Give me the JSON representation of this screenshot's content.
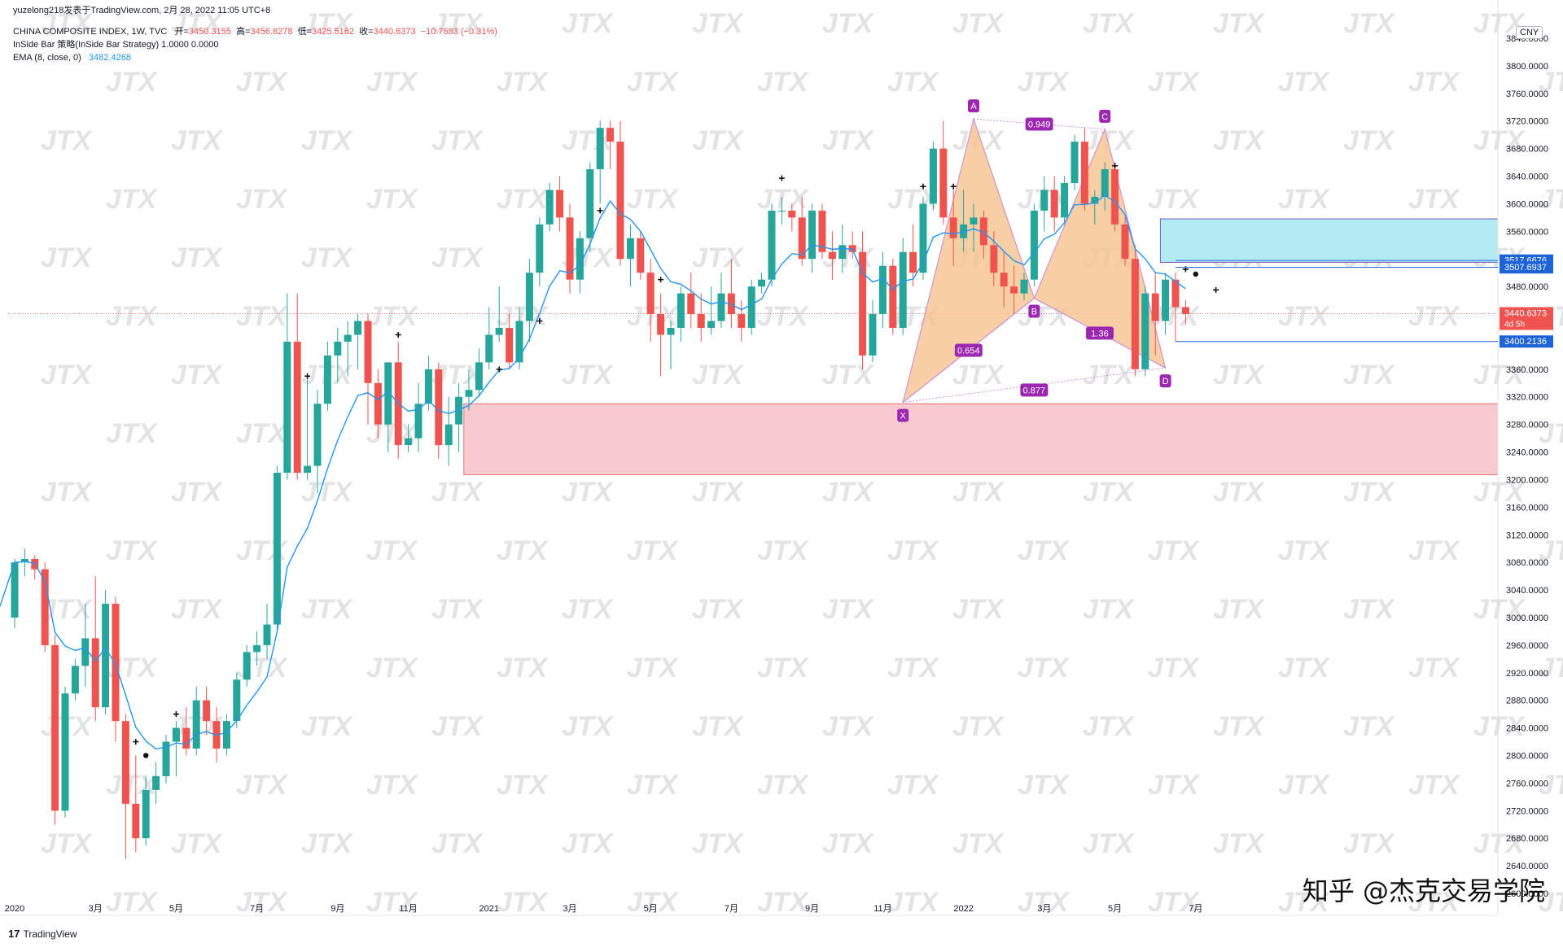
{
  "header": {
    "publisher": "yuzelong218发表于TradingView.com,  2月 28, 2022 11:05 UTC+8",
    "symbol": "CHINA COMPOSITE INDEX, 1W, TVC",
    "open_label": "开=",
    "open": "3450.3155",
    "high_label": "高=",
    "high": "3456.8278",
    "low_label": "低=",
    "low": "3425.5162",
    "close_label": "收=",
    "close": "3440.6373",
    "change": "−10.7683 (−0.31%)",
    "strategy": "InSide Bar 策略(InSide Bar Strategy)  1.0000  0.0000",
    "ema_label": "EMA (8, close, 0)",
    "ema_value": "3482.4268"
  },
  "currency": "CNY",
  "footer": {
    "logo_mark": "17",
    "logo_text": "TradingView",
    "credit": "知乎 @杰克交易学院"
  },
  "colors": {
    "up": "#26a69a",
    "down": "#ef5350",
    "ema": "#2196f3",
    "pattern_fill": "#f6c28e",
    "pattern_label": "#9c27b0",
    "demand_zone": "#f8c9cf",
    "supply_zone": "#b2ebf2"
  },
  "watermark": "JTX",
  "chart_data": {
    "type": "candlestick",
    "timeframe": "1W",
    "y_range": [
      2580,
      3860
    ],
    "y_ticks": [
      2600,
      2640,
      2680,
      2720,
      2760,
      2800,
      2840,
      2880,
      2920,
      2960,
      3000,
      3040,
      3080,
      3120,
      3160,
      3200,
      3240,
      3280,
      3320,
      3360,
      3400,
      3440,
      3480,
      3520,
      3560,
      3600,
      3640,
      3680,
      3720,
      3760,
      3800,
      3840
    ],
    "x_ticks": [
      {
        "label": "2020",
        "index": 0
      },
      {
        "label": "3月",
        "index": 8
      },
      {
        "label": "5月",
        "index": 16
      },
      {
        "label": "7月",
        "index": 24
      },
      {
        "label": "9月",
        "index": 32
      },
      {
        "label": "11月",
        "index": 39
      },
      {
        "label": "2021",
        "index": 47
      },
      {
        "label": "3月",
        "index": 55
      },
      {
        "label": "5月",
        "index": 63
      },
      {
        "label": "7月",
        "index": 71
      },
      {
        "label": "9月",
        "index": 79
      },
      {
        "label": "11月",
        "index": 86
      },
      {
        "label": "2022",
        "index": 94
      },
      {
        "label": "3月",
        "index": 102
      },
      {
        "label": "5月",
        "index": 109
      },
      {
        "label": "7月",
        "index": 117
      }
    ],
    "candles": [
      [
        3000,
        3085,
        2985,
        3080
      ],
      [
        3080,
        3100,
        3060,
        3085
      ],
      [
        3085,
        3090,
        3055,
        3070
      ],
      [
        3070,
        3080,
        2950,
        2960
      ],
      [
        2960,
        2975,
        2700,
        2720
      ],
      [
        2720,
        2900,
        2710,
        2890
      ],
      [
        2890,
        2940,
        2880,
        2930
      ],
      [
        2930,
        3020,
        2900,
        2970
      ],
      [
        2970,
        3060,
        2850,
        2870
      ],
      [
        2870,
        3040,
        2860,
        3020
      ],
      [
        3020,
        3030,
        2820,
        2850
      ],
      [
        2850,
        2860,
        2650,
        2730
      ],
      [
        2730,
        2800,
        2660,
        2680
      ],
      [
        2680,
        2770,
        2670,
        2750
      ],
      [
        2750,
        2790,
        2730,
        2770
      ],
      [
        2770,
        2830,
        2760,
        2820
      ],
      [
        2820,
        2850,
        2770,
        2840
      ],
      [
        2840,
        2870,
        2800,
        2810
      ],
      [
        2810,
        2900,
        2800,
        2880
      ],
      [
        2880,
        2900,
        2830,
        2850
      ],
      [
        2850,
        2870,
        2790,
        2810
      ],
      [
        2810,
        2860,
        2800,
        2850
      ],
      [
        2850,
        2920,
        2840,
        2910
      ],
      [
        2910,
        2960,
        2900,
        2950
      ],
      [
        2950,
        2980,
        2930,
        2960
      ],
      [
        2960,
        3020,
        2940,
        2990
      ],
      [
        2990,
        3220,
        2980,
        3210
      ],
      [
        3210,
        3470,
        3200,
        3400
      ],
      [
        3400,
        3470,
        3200,
        3210
      ],
      [
        3210,
        3350,
        3200,
        3220
      ],
      [
        3220,
        3330,
        3180,
        3310
      ],
      [
        3310,
        3400,
        3300,
        3380
      ],
      [
        3380,
        3420,
        3340,
        3400
      ],
      [
        3400,
        3430,
        3350,
        3410
      ],
      [
        3410,
        3440,
        3360,
        3430
      ],
      [
        3430,
        3440,
        3280,
        3340
      ],
      [
        3340,
        3360,
        3260,
        3280
      ],
      [
        3280,
        3360,
        3240,
        3370
      ],
      [
        3370,
        3400,
        3230,
        3250
      ],
      [
        3250,
        3280,
        3240,
        3260
      ],
      [
        3260,
        3340,
        3240,
        3310
      ],
      [
        3310,
        3380,
        3300,
        3360
      ],
      [
        3360,
        3370,
        3230,
        3250
      ],
      [
        3250,
        3320,
        3220,
        3280
      ],
      [
        3280,
        3340,
        3240,
        3320
      ],
      [
        3320,
        3360,
        3300,
        3330
      ],
      [
        3330,
        3390,
        3320,
        3370
      ],
      [
        3370,
        3450,
        3360,
        3410
      ],
      [
        3410,
        3480,
        3400,
        3420
      ],
      [
        3420,
        3440,
        3360,
        3370
      ],
      [
        3370,
        3450,
        3360,
        3430
      ],
      [
        3430,
        3520,
        3400,
        3500
      ],
      [
        3500,
        3580,
        3480,
        3570
      ],
      [
        3570,
        3630,
        3560,
        3620
      ],
      [
        3620,
        3640,
        3560,
        3580
      ],
      [
        3580,
        3600,
        3470,
        3490
      ],
      [
        3490,
        3560,
        3470,
        3550
      ],
      [
        3550,
        3660,
        3530,
        3650
      ],
      [
        3650,
        3720,
        3600,
        3710
      ],
      [
        3710,
        3720,
        3650,
        3690
      ],
      [
        3690,
        3720,
        3510,
        3520
      ],
      [
        3520,
        3570,
        3480,
        3550
      ],
      [
        3550,
        3560,
        3490,
        3500
      ],
      [
        3500,
        3520,
        3400,
        3440
      ],
      [
        3440,
        3470,
        3350,
        3410
      ],
      [
        3410,
        3430,
        3360,
        3420
      ],
      [
        3420,
        3480,
        3400,
        3470
      ],
      [
        3470,
        3500,
        3420,
        3440
      ],
      [
        3440,
        3470,
        3400,
        3420
      ],
      [
        3420,
        3480,
        3410,
        3430
      ],
      [
        3430,
        3500,
        3420,
        3470
      ],
      [
        3470,
        3520,
        3420,
        3440
      ],
      [
        3440,
        3460,
        3400,
        3420
      ],
      [
        3420,
        3490,
        3410,
        3480
      ],
      [
        3480,
        3500,
        3470,
        3490
      ],
      [
        3490,
        3600,
        3480,
        3590
      ],
      [
        3590,
        3610,
        3570,
        3590
      ],
      [
        3590,
        3600,
        3560,
        3580
      ],
      [
        3580,
        3610,
        3510,
        3520
      ],
      [
        3520,
        3600,
        3500,
        3590
      ],
      [
        3590,
        3600,
        3520,
        3530
      ],
      [
        3530,
        3560,
        3490,
        3520
      ],
      [
        3520,
        3570,
        3500,
        3540
      ],
      [
        3540,
        3560,
        3520,
        3530
      ],
      [
        3530,
        3560,
        3360,
        3380
      ],
      [
        3380,
        3460,
        3370,
        3440
      ],
      [
        3440,
        3530,
        3420,
        3510
      ],
      [
        3510,
        3520,
        3410,
        3420
      ],
      [
        3420,
        3550,
        3410,
        3530
      ],
      [
        3530,
        3570,
        3480,
        3500
      ],
      [
        3500,
        3610,
        3490,
        3600
      ],
      [
        3600,
        3690,
        3590,
        3680
      ],
      [
        3680,
        3720,
        3570,
        3580
      ],
      [
        3580,
        3620,
        3510,
        3550
      ],
      [
        3550,
        3620,
        3530,
        3570
      ],
      [
        3570,
        3600,
        3530,
        3580
      ],
      [
        3580,
        3590,
        3520,
        3540
      ],
      [
        3540,
        3560,
        3480,
        3500
      ],
      [
        3500,
        3530,
        3450,
        3480
      ],
      [
        3480,
        3510,
        3440,
        3470
      ],
      [
        3470,
        3500,
        3460,
        3490
      ],
      [
        3490,
        3600,
        3480,
        3590
      ],
      [
        3590,
        3640,
        3560,
        3620
      ],
      [
        3620,
        3640,
        3560,
        3580
      ],
      [
        3580,
        3640,
        3570,
        3630
      ],
      [
        3630,
        3700,
        3620,
        3690
      ],
      [
        3690,
        3710,
        3590,
        3600
      ],
      [
        3600,
        3620,
        3570,
        3610
      ],
      [
        3610,
        3660,
        3590,
        3650
      ],
      [
        3650,
        3660,
        3560,
        3570
      ],
      [
        3570,
        3580,
        3510,
        3520
      ],
      [
        3520,
        3540,
        3350,
        3360
      ],
      [
        3360,
        3480,
        3350,
        3470
      ],
      [
        3470,
        3500,
        3380,
        3430
      ],
      [
        3430,
        3500,
        3410,
        3490
      ],
      [
        3490,
        3500,
        3400,
        3450
      ],
      [
        3450,
        3460,
        3425,
        3440
      ]
    ],
    "ema": {
      "name": "EMA (8, close, 0)",
      "last": 3482.4268
    },
    "harmonic_pattern": {
      "points": [
        {
          "label": "X",
          "index": 88,
          "value": 3312
        },
        {
          "label": "A",
          "index": 95,
          "value": 3723
        },
        {
          "label": "B",
          "index": 101,
          "value": 3463
        },
        {
          "label": "C",
          "index": 108,
          "value": 3708
        },
        {
          "label": "D",
          "index": 114,
          "value": 3362
        }
      ],
      "ratios": [
        {
          "label": "0.949",
          "between": [
            "A",
            "C"
          ]
        },
        {
          "label": "0.654",
          "between": [
            "X",
            "B"
          ]
        },
        {
          "label": "1.36",
          "between": [
            "B",
            "D"
          ]
        },
        {
          "label": "0.877",
          "between": [
            "X",
            "D"
          ]
        }
      ]
    },
    "zones": [
      {
        "name": "demand",
        "from_index": 45,
        "top": 3310,
        "bottom": 3207
      },
      {
        "name": "supply",
        "from_index": 114,
        "top": 3578,
        "bottom": 3515
      }
    ],
    "price_labels": [
      {
        "value": "3517.6676",
        "price": 3517.6676,
        "style": "blue"
      },
      {
        "value": "3507.6937",
        "price": 3507.6937,
        "style": "blue"
      },
      {
        "value": "3440.6373",
        "sub": "4d 5h",
        "price": 3440.6373,
        "style": "red"
      },
      {
        "value": "3400.2136",
        "price": 3400.2136,
        "style": "blue"
      }
    ],
    "markers": [
      {
        "index": 12,
        "price": 2820,
        "shape": "plus"
      },
      {
        "index": 13,
        "price": 2800,
        "shape": "dot"
      },
      {
        "index": 16,
        "price": 2860,
        "shape": "plus"
      },
      {
        "index": 29,
        "price": 3350,
        "shape": "plus"
      },
      {
        "index": 38,
        "price": 3410,
        "shape": "plus"
      },
      {
        "index": 48,
        "price": 3360,
        "shape": "plus"
      },
      {
        "index": 52,
        "price": 3430,
        "shape": "plus"
      },
      {
        "index": 58,
        "price": 3590,
        "shape": "plus"
      },
      {
        "index": 64,
        "price": 3490,
        "shape": "plus"
      },
      {
        "index": 76,
        "price": 3637,
        "shape": "plus"
      },
      {
        "index": 90,
        "price": 3625,
        "shape": "plus"
      },
      {
        "index": 93,
        "price": 3625,
        "shape": "plus"
      },
      {
        "index": 109,
        "price": 3655,
        "shape": "plus"
      },
      {
        "index": 116,
        "price": 3505,
        "shape": "plus"
      },
      {
        "index": 117,
        "price": 3498,
        "shape": "dot"
      },
      {
        "index": 119,
        "price": 3475,
        "shape": "plus"
      }
    ],
    "last_price": 3440.6373
  }
}
